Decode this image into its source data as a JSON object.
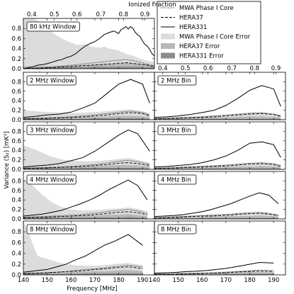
{
  "chart_data": {
    "type": "line",
    "xlabel": "Frequency [MHz]",
    "ylabel": "Variance (S₂) [mK²]",
    "top_axis_label": "Ionized Fraction",
    "xlim": [
      140,
      195
    ],
    "x_ticks": [
      140,
      150,
      160,
      170,
      180,
      190
    ],
    "top_ticks": [
      "0.4",
      "0.5",
      "0.6",
      "0.7",
      "0.8",
      "0.9"
    ],
    "top_tick_freqs": [
      143.5,
      153.0,
      162.5,
      172.5,
      182.0,
      191.0
    ],
    "ylim": [
      0,
      1.0
    ],
    "y_ticks": [
      "0.0",
      "0.2",
      "0.4",
      "0.6",
      "0.8"
    ],
    "legend": {
      "position": "top-right",
      "entries": [
        {
          "key": "mwa",
          "label": "MWA Phase I Core",
          "style": "dotted"
        },
        {
          "key": "h37",
          "label": "HERA37",
          "style": "dashed"
        },
        {
          "key": "h331",
          "label": "HERA331",
          "style": "solid"
        },
        {
          "key": "mwa_err",
          "label": "MWA Phase I Core Error",
          "style": "fill",
          "color": "#dcdcdc"
        },
        {
          "key": "h37_err",
          "label": "HERA37 Error",
          "style": "fill",
          "color": "#b8b8b8"
        },
        {
          "key": "h331_err",
          "label": "HERA331 Error",
          "style": "fill",
          "color": "#8c8c8c"
        }
      ]
    },
    "panels": [
      {
        "label": "80 kHz Window",
        "row": 0,
        "col": 0,
        "x": [
          140,
          142,
          144,
          146,
          148,
          150,
          152,
          154,
          156,
          158,
          160,
          162,
          164,
          166,
          168,
          170,
          172,
          174,
          176,
          178,
          180,
          181,
          182,
          183,
          184,
          185,
          186,
          187,
          188,
          189,
          190,
          191,
          192,
          193,
          194,
          195
        ],
        "h331": [
          0.0,
          0.02,
          0.04,
          0.07,
          0.08,
          0.1,
          0.13,
          0.16,
          0.18,
          0.22,
          0.25,
          0.3,
          0.38,
          0.45,
          0.5,
          0.54,
          0.6,
          0.68,
          0.72,
          0.75,
          0.7,
          0.78,
          0.8,
          0.84,
          0.79,
          0.84,
          0.8,
          0.72,
          0.67,
          0.64,
          0.55,
          0.48,
          0.45,
          0.38,
          0.3,
          0.25
        ],
        "mwa": [
          0.0,
          0.005,
          0.01,
          0.015,
          0.02,
          0.025,
          0.03,
          0.04,
          0.05,
          0.06,
          0.07,
          0.08,
          0.09,
          0.1,
          0.11,
          0.12,
          0.13,
          0.14,
          0.15,
          0.16,
          0.17,
          0.17,
          0.18,
          0.18,
          0.17,
          0.17,
          0.16,
          0.15,
          0.14,
          0.13,
          0.12,
          0.1,
          0.09,
          0.08,
          0.07,
          0.06
        ],
        "h37": [
          0.0,
          0.003,
          0.006,
          0.01,
          0.014,
          0.018,
          0.022,
          0.027,
          0.032,
          0.038,
          0.044,
          0.05,
          0.056,
          0.062,
          0.068,
          0.074,
          0.08,
          0.088,
          0.095,
          0.1,
          0.11,
          0.11,
          0.115,
          0.12,
          0.115,
          0.11,
          0.105,
          0.1,
          0.095,
          0.09,
          0.085,
          0.08,
          0.07,
          0.06,
          0.05,
          0.04
        ],
        "mwa_err": [
          1.0,
          1.0,
          1.0,
          0.96,
          0.85,
          0.8,
          0.72,
          0.66,
          0.6,
          0.56,
          0.52,
          0.48,
          0.47,
          0.49,
          0.45,
          0.43,
          0.42,
          0.44,
          0.4,
          0.38,
          0.36,
          0.34,
          0.32,
          0.3,
          0.28,
          0.27,
          0.26,
          0.24,
          0.22,
          0.2,
          0.18,
          0.17,
          0.16,
          0.15,
          0.14,
          0.13
        ],
        "h37_err": [
          0.05,
          0.05,
          0.05,
          0.05,
          0.05,
          0.05,
          0.05,
          0.06,
          0.06,
          0.06,
          0.06,
          0.07,
          0.07,
          0.08,
          0.08,
          0.09,
          0.09,
          0.1,
          0.1,
          0.11,
          0.11,
          0.12,
          0.12,
          0.12,
          0.12,
          0.12,
          0.11,
          0.11,
          0.1,
          0.1,
          0.09,
          0.09,
          0.08,
          0.07,
          0.06,
          0.05
        ],
        "h331_err": [
          0.02,
          0.02,
          0.02,
          0.02,
          0.02,
          0.02,
          0.02,
          0.02,
          0.03,
          0.03,
          0.03,
          0.03,
          0.03,
          0.03,
          0.04,
          0.04,
          0.04,
          0.04,
          0.04,
          0.04,
          0.04,
          0.04,
          0.04,
          0.04,
          0.04,
          0.04,
          0.04,
          0.04,
          0.04,
          0.04,
          0.03,
          0.03,
          0.03,
          0.03,
          0.03,
          0.03
        ]
      },
      {
        "label": "2 MHz Window",
        "row": 1,
        "col": 0,
        "x": [
          140,
          145,
          150,
          155,
          160,
          165,
          170,
          175,
          180,
          185,
          190,
          193
        ],
        "h331": [
          0.05,
          0.07,
          0.1,
          0.12,
          0.16,
          0.25,
          0.35,
          0.55,
          0.75,
          0.85,
          0.75,
          0.35
        ],
        "mwa": [
          0.02,
          0.03,
          0.04,
          0.05,
          0.06,
          0.08,
          0.1,
          0.13,
          0.16,
          0.18,
          0.15,
          0.1
        ],
        "h37": [
          0.02,
          0.02,
          0.03,
          0.04,
          0.05,
          0.06,
          0.08,
          0.1,
          0.13,
          0.15,
          0.13,
          0.08
        ],
        "mwa_err": [
          0.2,
          0.18,
          0.16,
          0.15,
          0.14,
          0.15,
          0.16,
          0.18,
          0.2,
          0.22,
          0.18,
          0.14
        ],
        "h37_err": [
          0.04,
          0.04,
          0.04,
          0.05,
          0.05,
          0.06,
          0.06,
          0.07,
          0.08,
          0.08,
          0.07,
          0.06
        ],
        "h331_err": [
          0.02,
          0.02,
          0.02,
          0.02,
          0.02,
          0.02,
          0.03,
          0.03,
          0.03,
          0.03,
          0.03,
          0.02
        ]
      },
      {
        "label": "2 MHz Bin",
        "row": 1,
        "col": 1,
        "x": [
          140,
          145,
          150,
          155,
          160,
          165,
          170,
          175,
          180,
          185,
          190,
          193
        ],
        "h331": [
          0.05,
          0.06,
          0.08,
          0.11,
          0.15,
          0.2,
          0.3,
          0.45,
          0.62,
          0.72,
          0.65,
          0.28
        ],
        "mwa": [
          0.02,
          0.03,
          0.04,
          0.05,
          0.06,
          0.08,
          0.1,
          0.12,
          0.14,
          0.15,
          0.12,
          0.08
        ],
        "h37": [
          0.02,
          0.02,
          0.03,
          0.04,
          0.05,
          0.06,
          0.08,
          0.1,
          0.12,
          0.13,
          0.11,
          0.07
        ],
        "mwa_err": [
          0.06,
          0.06,
          0.06,
          0.07,
          0.08,
          0.09,
          0.1,
          0.12,
          0.14,
          0.15,
          0.12,
          0.1
        ],
        "h37_err": [
          0.03,
          0.03,
          0.03,
          0.04,
          0.04,
          0.05,
          0.05,
          0.06,
          0.07,
          0.07,
          0.06,
          0.05
        ],
        "h331_err": [
          0.01,
          0.01,
          0.01,
          0.01,
          0.01,
          0.02,
          0.02,
          0.02,
          0.02,
          0.02,
          0.02,
          0.02
        ]
      },
      {
        "label": "3 MHz Window",
        "row": 2,
        "col": 0,
        "x": [
          140,
          145,
          150,
          155,
          160,
          165,
          170,
          175,
          180,
          184,
          188,
          193
        ],
        "h331": [
          0.05,
          0.07,
          0.09,
          0.12,
          0.18,
          0.25,
          0.38,
          0.55,
          0.72,
          0.83,
          0.75,
          0.38
        ],
        "mwa": [
          0.02,
          0.03,
          0.04,
          0.05,
          0.06,
          0.08,
          0.1,
          0.13,
          0.17,
          0.19,
          0.16,
          0.1
        ],
        "h37": [
          0.02,
          0.02,
          0.03,
          0.04,
          0.05,
          0.06,
          0.08,
          0.1,
          0.13,
          0.14,
          0.12,
          0.08
        ],
        "mwa_err": [
          0.5,
          0.42,
          0.3,
          0.22,
          0.18,
          0.17,
          0.17,
          0.19,
          0.22,
          0.24,
          0.2,
          0.14
        ],
        "h37_err": [
          0.05,
          0.05,
          0.05,
          0.05,
          0.06,
          0.06,
          0.07,
          0.08,
          0.09,
          0.09,
          0.08,
          0.06
        ],
        "h331_err": [
          0.02,
          0.02,
          0.02,
          0.02,
          0.02,
          0.03,
          0.03,
          0.03,
          0.03,
          0.03,
          0.03,
          0.02
        ]
      },
      {
        "label": "3 MHz Bin",
        "row": 2,
        "col": 1,
        "x": [
          140,
          145,
          150,
          155,
          160,
          165,
          170,
          175,
          180,
          185,
          190,
          193
        ],
        "h331": [
          0.05,
          0.06,
          0.08,
          0.1,
          0.14,
          0.2,
          0.28,
          0.4,
          0.55,
          0.58,
          0.52,
          0.25
        ],
        "mwa": [
          0.02,
          0.03,
          0.04,
          0.05,
          0.06,
          0.07,
          0.09,
          0.11,
          0.13,
          0.14,
          0.12,
          0.08
        ],
        "h37": [
          0.02,
          0.02,
          0.03,
          0.04,
          0.05,
          0.06,
          0.07,
          0.09,
          0.11,
          0.12,
          0.1,
          0.06
        ],
        "mwa_err": [
          0.06,
          0.06,
          0.06,
          0.07,
          0.08,
          0.09,
          0.1,
          0.11,
          0.13,
          0.14,
          0.12,
          0.09
        ],
        "h37_err": [
          0.03,
          0.03,
          0.03,
          0.04,
          0.04,
          0.05,
          0.05,
          0.06,
          0.06,
          0.07,
          0.06,
          0.05
        ],
        "h331_err": [
          0.01,
          0.01,
          0.01,
          0.01,
          0.01,
          0.02,
          0.02,
          0.02,
          0.02,
          0.02,
          0.02,
          0.02
        ]
      },
      {
        "label": "4 MHz Window",
        "row": 3,
        "col": 0,
        "x": [
          140,
          144,
          148,
          152,
          156,
          160,
          164,
          168,
          172,
          176,
          180,
          184,
          188,
          192
        ],
        "h331": [
          0.06,
          0.08,
          0.1,
          0.14,
          0.18,
          0.25,
          0.32,
          0.4,
          0.5,
          0.62,
          0.72,
          0.82,
          0.7,
          0.4
        ],
        "mwa": [
          0.03,
          0.04,
          0.05,
          0.06,
          0.07,
          0.08,
          0.09,
          0.11,
          0.13,
          0.16,
          0.18,
          0.2,
          0.17,
          0.12
        ],
        "h37": [
          0.02,
          0.03,
          0.03,
          0.04,
          0.05,
          0.06,
          0.07,
          0.08,
          0.1,
          0.12,
          0.14,
          0.15,
          0.13,
          0.09
        ],
        "mwa_err": [
          0.85,
          0.7,
          0.5,
          0.35,
          0.25,
          0.2,
          0.18,
          0.18,
          0.19,
          0.21,
          0.22,
          0.24,
          0.21,
          0.16
        ],
        "h37_err": [
          0.05,
          0.05,
          0.05,
          0.06,
          0.06,
          0.06,
          0.07,
          0.07,
          0.08,
          0.09,
          0.09,
          0.1,
          0.08,
          0.06
        ],
        "h331_err": [
          0.02,
          0.02,
          0.02,
          0.02,
          0.02,
          0.03,
          0.03,
          0.03,
          0.03,
          0.03,
          0.03,
          0.04,
          0.03,
          0.02
        ]
      },
      {
        "label": "4 MHz Bin",
        "row": 3,
        "col": 1,
        "x": [
          140,
          144,
          148,
          152,
          156,
          160,
          164,
          168,
          172,
          176,
          180,
          184,
          188,
          192
        ],
        "h331": [
          0.05,
          0.06,
          0.07,
          0.09,
          0.12,
          0.15,
          0.2,
          0.26,
          0.32,
          0.4,
          0.48,
          0.55,
          0.5,
          0.32
        ],
        "mwa": [
          0.02,
          0.03,
          0.04,
          0.05,
          0.06,
          0.07,
          0.08,
          0.09,
          0.1,
          0.12,
          0.13,
          0.14,
          0.12,
          0.08
        ],
        "h37": [
          0.02,
          0.02,
          0.03,
          0.04,
          0.05,
          0.06,
          0.06,
          0.07,
          0.08,
          0.1,
          0.11,
          0.12,
          0.1,
          0.07
        ],
        "mwa_err": [
          0.06,
          0.06,
          0.06,
          0.07,
          0.07,
          0.08,
          0.09,
          0.1,
          0.11,
          0.12,
          0.13,
          0.14,
          0.12,
          0.09
        ],
        "h37_err": [
          0.03,
          0.03,
          0.03,
          0.04,
          0.04,
          0.04,
          0.05,
          0.05,
          0.06,
          0.06,
          0.06,
          0.07,
          0.06,
          0.05
        ],
        "h331_err": [
          0.01,
          0.01,
          0.01,
          0.01,
          0.01,
          0.02,
          0.02,
          0.02,
          0.02,
          0.02,
          0.02,
          0.02,
          0.02,
          0.02
        ]
      },
      {
        "label": "8 MHz Window",
        "row": 4,
        "col": 0,
        "x": [
          140,
          146,
          150,
          154,
          158,
          162,
          166,
          170,
          174,
          178,
          184,
          190
        ],
        "h331": [
          0.05,
          0.08,
          0.1,
          0.15,
          0.2,
          0.28,
          0.35,
          0.45,
          0.55,
          0.62,
          0.75,
          0.55
        ],
        "mwa": [
          0.02,
          0.03,
          0.04,
          0.05,
          0.06,
          0.08,
          0.1,
          0.11,
          0.13,
          0.15,
          0.18,
          0.15
        ],
        "h37": [
          0.02,
          0.03,
          0.04,
          0.05,
          0.06,
          0.07,
          0.08,
          0.1,
          0.11,
          0.13,
          0.15,
          0.12
        ],
        "mwa_err": [
          1.0,
          0.35,
          0.3,
          0.24,
          0.2,
          0.18,
          0.17,
          0.17,
          0.18,
          0.2,
          0.22,
          0.18
        ],
        "h37_err": [
          0.05,
          0.05,
          0.05,
          0.05,
          0.05,
          0.06,
          0.06,
          0.07,
          0.07,
          0.08,
          0.09,
          0.07
        ],
        "h331_err": [
          0.02,
          0.02,
          0.02,
          0.02,
          0.02,
          0.02,
          0.03,
          0.03,
          0.03,
          0.03,
          0.03,
          0.03
        ]
      },
      {
        "label": "8 MHz Bin",
        "row": 4,
        "col": 1,
        "x": [
          140,
          146,
          150,
          154,
          158,
          162,
          166,
          170,
          174,
          178,
          184,
          190
        ],
        "h331": [
          0.03,
          0.04,
          0.05,
          0.06,
          0.07,
          0.08,
          0.1,
          0.12,
          0.15,
          0.18,
          0.23,
          0.22
        ],
        "mwa": [
          0.01,
          0.01,
          0.02,
          0.02,
          0.03,
          0.03,
          0.04,
          0.05,
          0.06,
          0.07,
          0.09,
          0.08
        ],
        "h37": [
          0.01,
          0.01,
          0.01,
          0.02,
          0.02,
          0.03,
          0.03,
          0.04,
          0.05,
          0.06,
          0.07,
          0.06
        ],
        "mwa_err": [
          0.05,
          0.05,
          0.05,
          0.05,
          0.05,
          0.05,
          0.06,
          0.06,
          0.07,
          0.08,
          0.09,
          0.08
        ],
        "h37_err": [
          0.02,
          0.02,
          0.02,
          0.03,
          0.03,
          0.03,
          0.03,
          0.04,
          0.04,
          0.05,
          0.05,
          0.04
        ],
        "h331_err": [
          0.01,
          0.01,
          0.01,
          0.01,
          0.01,
          0.01,
          0.01,
          0.01,
          0.02,
          0.02,
          0.02,
          0.02
        ]
      }
    ]
  }
}
